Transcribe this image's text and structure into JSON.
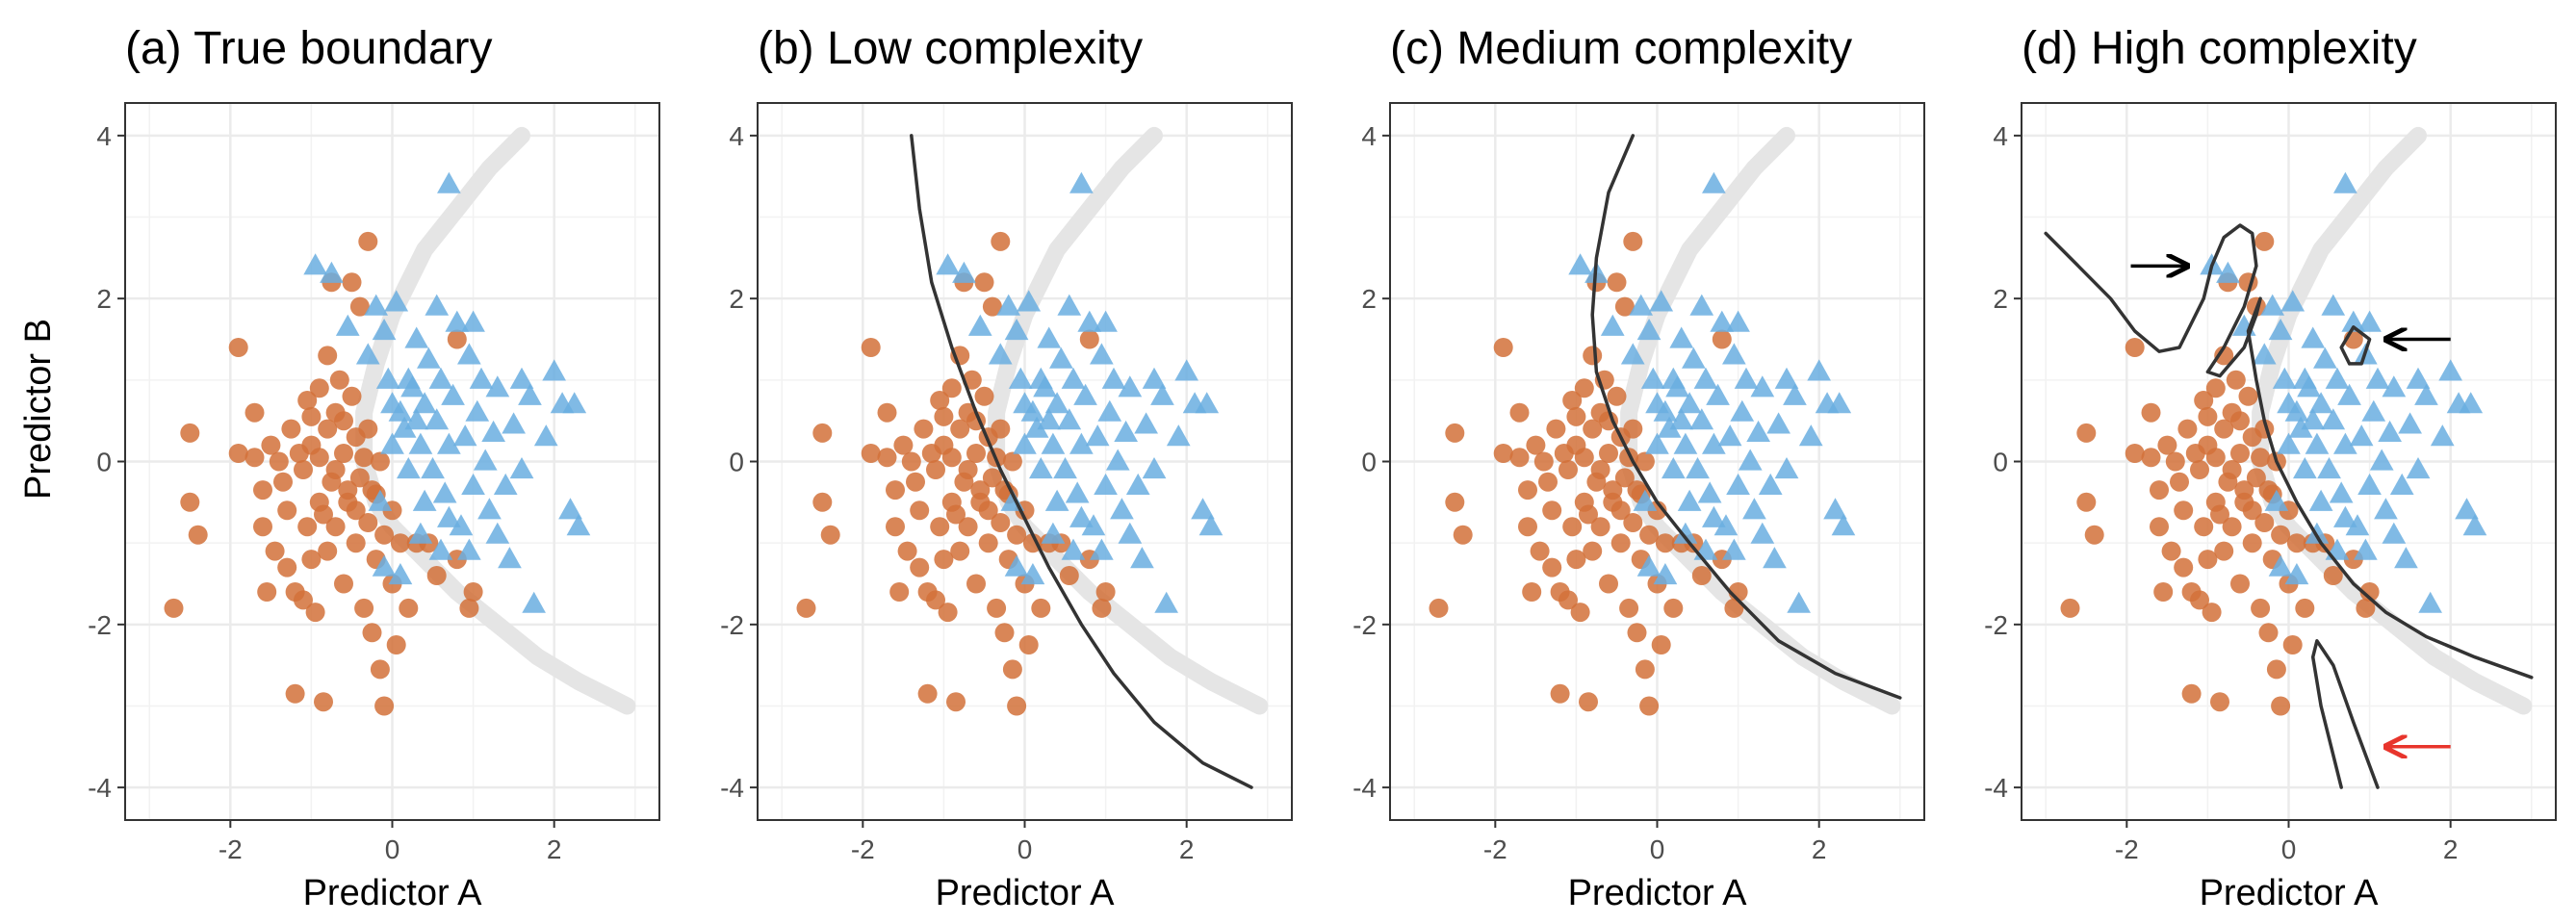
{
  "chart_data": {
    "type": "scatter",
    "ylabel": "Predictor B",
    "xlim": [
      -3.3,
      3.3
    ],
    "ylim": [
      -4.4,
      4.4
    ],
    "x_ticks": [
      -2,
      0,
      2
    ],
    "y_ticks": [
      -4,
      -2,
      0,
      2,
      4
    ],
    "grid": true,
    "colors": {
      "class_circle": "#D2713A",
      "class_triangle": "#6AAEE0",
      "true_boundary": "#E5E5E5",
      "fitted_boundary": "#333333",
      "arrow_black": "#000000",
      "arrow_red": "#E8352C"
    },
    "true_boundary": [
      [
        1.6,
        4.0
      ],
      [
        1.2,
        3.6
      ],
      [
        0.8,
        3.1
      ],
      [
        0.4,
        2.6
      ],
      [
        0.0,
        1.8
      ],
      [
        -0.2,
        1.2
      ],
      [
        -0.35,
        0.6
      ],
      [
        -0.35,
        0.0
      ],
      [
        -0.2,
        -0.5
      ],
      [
        0.0,
        -0.8
      ],
      [
        0.4,
        -1.2
      ],
      [
        0.8,
        -1.6
      ],
      [
        1.3,
        -2.0
      ],
      [
        1.8,
        -2.4
      ],
      [
        2.3,
        -2.7
      ],
      [
        2.9,
        -3.0
      ]
    ],
    "series": [
      {
        "name": "",
        "marker": "circle",
        "points": [
          [
            -2.7,
            -1.8
          ],
          [
            -2.5,
            0.35
          ],
          [
            -2.5,
            -0.5
          ],
          [
            -2.4,
            -0.9
          ],
          [
            -1.9,
            1.4
          ],
          [
            -1.9,
            0.1
          ],
          [
            -1.7,
            0.6
          ],
          [
            -1.7,
            0.05
          ],
          [
            -1.6,
            -0.35
          ],
          [
            -1.6,
            -0.8
          ],
          [
            -1.55,
            -1.6
          ],
          [
            -1.5,
            0.2
          ],
          [
            -1.45,
            -1.1
          ],
          [
            -1.4,
            0.0
          ],
          [
            -1.35,
            -0.25
          ],
          [
            -1.3,
            -0.6
          ],
          [
            -1.3,
            -1.3
          ],
          [
            -1.25,
            0.4
          ],
          [
            -1.2,
            -1.6
          ],
          [
            -1.2,
            -2.85
          ],
          [
            -1.15,
            0.1
          ],
          [
            -1.1,
            -0.1
          ],
          [
            -1.1,
            -1.7
          ],
          [
            -1.05,
            0.75
          ],
          [
            -1.05,
            -0.8
          ],
          [
            -1.0,
            0.2
          ],
          [
            -1.0,
            -1.2
          ],
          [
            -0.95,
            -1.85
          ],
          [
            -0.9,
            -0.5
          ],
          [
            -0.9,
            0.05
          ],
          [
            -0.85,
            -2.95
          ],
          [
            -0.8,
            1.3
          ],
          [
            -0.8,
            0.4
          ],
          [
            -0.8,
            -1.1
          ],
          [
            -0.75,
            2.2
          ],
          [
            -0.75,
            -0.25
          ],
          [
            -0.7,
            0.6
          ],
          [
            -0.7,
            -0.8
          ],
          [
            -0.65,
            1.0
          ],
          [
            -0.6,
            0.1
          ],
          [
            -0.6,
            -1.5
          ],
          [
            -0.55,
            -0.5
          ],
          [
            -0.5,
            2.2
          ],
          [
            -0.5,
            0.8
          ],
          [
            -0.45,
            0.3
          ],
          [
            -0.45,
            -1.0
          ],
          [
            -0.4,
            1.9
          ],
          [
            -0.4,
            -0.2
          ],
          [
            -0.35,
            -1.8
          ],
          [
            -0.3,
            2.7
          ],
          [
            -0.3,
            0.4
          ],
          [
            -0.3,
            -0.75
          ],
          [
            -0.25,
            -2.1
          ],
          [
            -0.2,
            -0.4
          ],
          [
            -0.2,
            -1.2
          ],
          [
            -0.15,
            -2.55
          ],
          [
            -0.1,
            -3.0
          ],
          [
            -0.1,
            -0.9
          ],
          [
            0.0,
            -1.5
          ],
          [
            0.0,
            -0.6
          ],
          [
            0.05,
            -2.25
          ],
          [
            0.1,
            -1.0
          ],
          [
            0.2,
            -1.8
          ],
          [
            0.3,
            -1.0
          ],
          [
            0.45,
            -1.0
          ],
          [
            0.55,
            -1.4
          ],
          [
            0.8,
            1.5
          ],
          [
            0.8,
            -1.2
          ],
          [
            0.95,
            -1.8
          ],
          [
            1.0,
            -1.6
          ],
          [
            -0.9,
            0.9
          ],
          [
            -0.7,
            -0.1
          ],
          [
            -0.55,
            -0.35
          ],
          [
            -1.0,
            0.55
          ],
          [
            -0.6,
            0.5
          ],
          [
            -0.35,
            0.05
          ],
          [
            -0.15,
            0.0
          ],
          [
            -0.85,
            -0.65
          ],
          [
            -0.45,
            -0.6
          ],
          [
            -0.25,
            -0.35
          ]
        ]
      },
      {
        "name": "",
        "marker": "triangle",
        "points": [
          [
            0.7,
            3.4
          ],
          [
            -0.95,
            2.4
          ],
          [
            -0.75,
            2.3
          ],
          [
            -0.55,
            1.65
          ],
          [
            -0.3,
            1.3
          ],
          [
            -0.2,
            1.9
          ],
          [
            -0.1,
            1.6
          ],
          [
            -0.05,
            1.0
          ],
          [
            0.0,
            0.7
          ],
          [
            0.05,
            1.95
          ],
          [
            0.15,
            0.4
          ],
          [
            0.2,
            1.0
          ],
          [
            0.3,
            1.5
          ],
          [
            0.35,
            0.2
          ],
          [
            0.4,
            0.7
          ],
          [
            0.45,
            1.25
          ],
          [
            0.5,
            -0.1
          ],
          [
            0.55,
            0.5
          ],
          [
            0.6,
            1.0
          ],
          [
            0.65,
            -0.4
          ],
          [
            0.7,
            0.2
          ],
          [
            0.75,
            0.8
          ],
          [
            0.8,
            1.7
          ],
          [
            0.85,
            -0.8
          ],
          [
            0.9,
            0.3
          ],
          [
            0.95,
            1.3
          ],
          [
            1.0,
            -0.3
          ],
          [
            1.05,
            0.6
          ],
          [
            1.1,
            1.0
          ],
          [
            1.15,
            0.0
          ],
          [
            1.2,
            -0.6
          ],
          [
            1.25,
            0.35
          ],
          [
            1.3,
            0.9
          ],
          [
            1.4,
            -0.3
          ],
          [
            1.5,
            0.45
          ],
          [
            1.6,
            -0.1
          ],
          [
            1.7,
            0.8
          ],
          [
            1.75,
            -1.75
          ],
          [
            1.9,
            0.3
          ],
          [
            2.0,
            1.1
          ],
          [
            2.1,
            0.7
          ],
          [
            2.2,
            -0.6
          ],
          [
            2.3,
            -0.8
          ],
          [
            2.25,
            0.7
          ],
          [
            1.0,
            1.7
          ],
          [
            0.6,
            -1.1
          ],
          [
            0.1,
            -1.4
          ],
          [
            0.2,
            -0.1
          ],
          [
            0.4,
            -0.5
          ],
          [
            0.1,
            0.6
          ],
          [
            0.25,
            0.9
          ],
          [
            0.35,
            -0.9
          ],
          [
            0.7,
            -0.7
          ],
          [
            0.95,
            -1.1
          ],
          [
            1.3,
            -0.9
          ],
          [
            1.45,
            -1.2
          ],
          [
            -0.15,
            -0.5
          ],
          [
            0.0,
            0.2
          ],
          [
            -0.1,
            -1.3
          ],
          [
            1.6,
            1.0
          ],
          [
            0.55,
            1.9
          ],
          [
            0.3,
            0.5
          ]
        ]
      }
    ],
    "panels": [
      {
        "title": "(a) True boundary",
        "xlabel": "Predictor A",
        "fitted_boundaries": [],
        "arrows": []
      },
      {
        "title": "(b) Low complexity",
        "xlabel": "Predictor A",
        "fitted_boundaries": [
          [
            [
              -1.4,
              4.0
            ],
            [
              -1.3,
              3.1
            ],
            [
              -1.15,
              2.2
            ],
            [
              -0.9,
              1.4
            ],
            [
              -0.6,
              0.6
            ],
            [
              -0.3,
              -0.1
            ],
            [
              0.0,
              -0.7
            ],
            [
              0.3,
              -1.3
            ],
            [
              0.7,
              -2.0
            ],
            [
              1.1,
              -2.6
            ],
            [
              1.6,
              -3.2
            ],
            [
              2.2,
              -3.7
            ],
            [
              2.8,
              -4.0
            ]
          ]
        ],
        "arrows": []
      },
      {
        "title": "(c) Medium complexity",
        "xlabel": "Predictor A",
        "fitted_boundaries": [
          [
            [
              -0.3,
              4.0
            ],
            [
              -0.6,
              3.3
            ],
            [
              -0.75,
              2.5
            ],
            [
              -0.8,
              1.8
            ],
            [
              -0.75,
              1.1
            ],
            [
              -0.55,
              0.5
            ],
            [
              -0.3,
              0.0
            ],
            [
              0.0,
              -0.5
            ],
            [
              0.4,
              -1.0
            ],
            [
              0.9,
              -1.6
            ],
            [
              1.5,
              -2.2
            ],
            [
              2.2,
              -2.6
            ],
            [
              3.0,
              -2.9
            ]
          ]
        ],
        "arrows": []
      },
      {
        "title": "(d) High complexity",
        "xlabel": "Predictor A",
        "fitted_boundaries": [
          [
            [
              -3.0,
              2.8
            ],
            [
              -2.6,
              2.4
            ],
            [
              -2.2,
              2.0
            ],
            [
              -1.9,
              1.6
            ],
            [
              -1.6,
              1.35
            ],
            [
              -1.35,
              1.4
            ],
            [
              -1.2,
              1.7
            ],
            [
              -1.05,
              2.0
            ],
            [
              -0.95,
              2.4
            ],
            [
              -0.8,
              2.75
            ],
            [
              -0.6,
              2.9
            ],
            [
              -0.45,
              2.8
            ],
            [
              -0.4,
              2.4
            ],
            [
              -0.55,
              1.9
            ],
            [
              -0.8,
              1.4
            ],
            [
              -1.0,
              1.1
            ],
            [
              -0.85,
              1.05
            ],
            [
              -0.55,
              1.4
            ],
            [
              -0.4,
              1.8
            ],
            [
              -0.35,
              2.0
            ],
            [
              -0.5,
              1.6
            ],
            [
              -0.4,
              1.0
            ],
            [
              -0.3,
              0.5
            ],
            [
              -0.15,
              0.0
            ],
            [
              0.1,
              -0.5
            ],
            [
              0.4,
              -1.0
            ],
            [
              0.8,
              -1.5
            ],
            [
              1.2,
              -1.85
            ],
            [
              1.7,
              -2.15
            ],
            [
              2.3,
              -2.4
            ],
            [
              3.0,
              -2.65
            ]
          ],
          [
            [
              0.65,
              -4.0
            ],
            [
              0.4,
              -3.0
            ],
            [
              0.3,
              -2.4
            ],
            [
              0.35,
              -2.2
            ],
            [
              0.55,
              -2.5
            ],
            [
              0.8,
              -3.2
            ],
            [
              1.1,
              -4.0
            ]
          ],
          [
            [
              0.75,
              1.2
            ],
            [
              0.65,
              1.4
            ],
            [
              0.8,
              1.65
            ],
            [
              1.0,
              1.5
            ],
            [
              0.9,
              1.2
            ],
            [
              0.75,
              1.2
            ]
          ]
        ],
        "arrows": [
          {
            "from": [
              -1.95,
              2.4
            ],
            "to": [
              -1.25,
              2.4
            ],
            "color": "arrow_black"
          },
          {
            "from": [
              2.0,
              1.5
            ],
            "to": [
              1.2,
              1.5
            ],
            "color": "arrow_black"
          },
          {
            "from": [
              2.0,
              -3.5
            ],
            "to": [
              1.2,
              -3.5
            ],
            "color": "arrow_red"
          }
        ]
      }
    ]
  }
}
